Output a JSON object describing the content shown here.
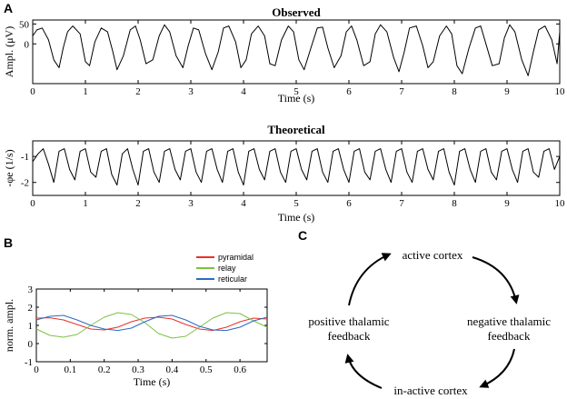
{
  "panel_letters": {
    "a": "A",
    "b": "B",
    "c": "C"
  },
  "chart_data": [
    {
      "type": "line",
      "panel": "A",
      "title": "Observed",
      "xlabel": "Time (s)",
      "ylabel": "Ampl. (μV)",
      "xlim": [
        0,
        10
      ],
      "ylim": [
        -100,
        60
      ],
      "xticks": [
        0,
        1,
        2,
        3,
        4,
        5,
        6,
        7,
        8,
        9,
        10
      ],
      "yticks": [
        0,
        50
      ],
      "grid": false,
      "series": [
        {
          "color": "#000000",
          "x": [
            0,
            0.08,
            0.18,
            0.3,
            0.4,
            0.5,
            0.58,
            0.66,
            0.76,
            0.9,
            1.0,
            1.08,
            1.18,
            1.3,
            1.42,
            1.52,
            1.6,
            1.72,
            1.85,
            1.95,
            2.04,
            2.15,
            2.28,
            2.4,
            2.5,
            2.6,
            2.72,
            2.85,
            2.95,
            3.05,
            3.15,
            3.28,
            3.4,
            3.52,
            3.62,
            3.72,
            3.85,
            3.95,
            4.05,
            4.15,
            4.28,
            4.4,
            4.5,
            4.6,
            4.72,
            4.85,
            4.95,
            5.05,
            5.15,
            5.28,
            5.4,
            5.5,
            5.6,
            5.72,
            5.85,
            5.95,
            6.05,
            6.15,
            6.28,
            6.4,
            6.5,
            6.6,
            6.72,
            6.85,
            6.95,
            7.05,
            7.15,
            7.28,
            7.4,
            7.5,
            7.6,
            7.72,
            7.85,
            7.95,
            8.05,
            8.15,
            8.28,
            8.4,
            8.5,
            8.6,
            8.72,
            8.85,
            8.95,
            9.05,
            9.15,
            9.28,
            9.4,
            9.5,
            9.6,
            9.72,
            9.85,
            9.95,
            10.0
          ],
          "y": [
            20,
            35,
            40,
            10,
            -40,
            -60,
            -10,
            30,
            45,
            25,
            -45,
            -55,
            5,
            40,
            30,
            -20,
            -65,
            -30,
            35,
            45,
            10,
            -50,
            -40,
            20,
            48,
            30,
            -30,
            -60,
            -5,
            40,
            35,
            -25,
            -65,
            -20,
            40,
            45,
            5,
            -60,
            -40,
            25,
            45,
            20,
            -50,
            -55,
            10,
            45,
            30,
            -40,
            -65,
            -10,
            40,
            42,
            -10,
            -60,
            -30,
            30,
            45,
            10,
            -55,
            -45,
            25,
            48,
            30,
            -35,
            -70,
            -20,
            40,
            45,
            -5,
            -60,
            -45,
            20,
            45,
            25,
            -55,
            -75,
            -10,
            40,
            45,
            0,
            -55,
            -50,
            15,
            48,
            30,
            -40,
            -80,
            -20,
            35,
            45,
            10,
            -50,
            30
          ]
        }
      ]
    },
    {
      "type": "line",
      "panel": "A",
      "title": "Theoretical",
      "xlabel": "Time (s)",
      "ylabel": "-φe (1/s)",
      "xlim": [
        0,
        10
      ],
      "ylim": [
        -2.5,
        -0.4
      ],
      "xticks": [
        0,
        1,
        2,
        3,
        4,
        5,
        6,
        7,
        8,
        9,
        10
      ],
      "yticks": [
        -2,
        -1
      ],
      "grid": false,
      "series": [
        {
          "color": "#000000",
          "x": [
            0,
            0.1,
            0.2,
            0.3,
            0.4,
            0.5,
            0.6,
            0.7,
            0.8,
            0.9,
            1.0,
            1.1,
            1.2,
            1.3,
            1.4,
            1.5,
            1.6,
            1.7,
            1.8,
            1.9,
            2.0,
            2.1,
            2.2,
            2.3,
            2.4,
            2.5,
            2.6,
            2.7,
            2.8,
            2.9,
            3.0,
            3.1,
            3.2,
            3.3,
            3.4,
            3.5,
            3.6,
            3.7,
            3.8,
            3.9,
            4.0,
            4.1,
            4.2,
            4.3,
            4.4,
            4.5,
            4.6,
            4.7,
            4.8,
            4.9,
            5.0,
            5.1,
            5.2,
            5.3,
            5.4,
            5.5,
            5.6,
            5.7,
            5.8,
            5.9,
            6.0,
            6.1,
            6.2,
            6.3,
            6.4,
            6.5,
            6.6,
            6.7,
            6.8,
            6.9,
            7.0,
            7.1,
            7.2,
            7.3,
            7.4,
            7.5,
            7.6,
            7.7,
            7.8,
            7.9,
            8.0,
            8.1,
            8.2,
            8.3,
            8.4,
            8.5,
            8.6,
            8.7,
            8.8,
            8.9,
            9.0,
            9.1,
            9.2,
            9.3,
            9.4,
            9.5,
            9.6,
            9.7,
            9.8,
            9.9,
            10.0
          ],
          "y": [
            -1.2,
            -0.9,
            -0.7,
            -1.3,
            -2.0,
            -0.8,
            -0.7,
            -1.5,
            -1.9,
            -0.8,
            -0.7,
            -1.6,
            -1.8,
            -0.8,
            -0.7,
            -1.7,
            -2.1,
            -0.9,
            -0.7,
            -1.5,
            -2.1,
            -0.8,
            -0.7,
            -1.6,
            -2.0,
            -0.8,
            -0.7,
            -1.5,
            -1.9,
            -0.8,
            -0.7,
            -1.6,
            -2.0,
            -0.8,
            -0.7,
            -1.5,
            -2.0,
            -0.8,
            -0.7,
            -1.6,
            -2.1,
            -0.8,
            -0.7,
            -1.5,
            -1.9,
            -0.8,
            -0.7,
            -1.6,
            -2.0,
            -0.8,
            -0.7,
            -1.5,
            -1.9,
            -0.8,
            -0.7,
            -1.6,
            -2.0,
            -0.8,
            -0.7,
            -1.5,
            -2.0,
            -0.8,
            -0.7,
            -1.6,
            -1.9,
            -0.8,
            -0.7,
            -1.5,
            -2.0,
            -0.8,
            -0.7,
            -1.6,
            -2.0,
            -0.8,
            -0.7,
            -1.5,
            -1.9,
            -0.8,
            -0.7,
            -1.6,
            -2.1,
            -0.8,
            -0.7,
            -1.5,
            -2.0,
            -0.8,
            -0.7,
            -1.6,
            -1.9,
            -0.8,
            -0.7,
            -1.5,
            -2.0,
            -0.8,
            -0.7,
            -1.6,
            -1.8,
            -0.8,
            -0.7,
            -1.5,
            -1.0
          ]
        }
      ]
    },
    {
      "type": "line",
      "panel": "B",
      "title": "",
      "xlabel": "Time (s)",
      "ylabel": "norm. ampl.",
      "xlim": [
        0,
        0.68
      ],
      "ylim": [
        -1,
        3
      ],
      "xticks": [
        0,
        0.1,
        0.2,
        0.3,
        0.4,
        0.5,
        0.6
      ],
      "yticks": [
        -1,
        0,
        1,
        2,
        3
      ],
      "grid": false,
      "legend": "top-left, above plot",
      "series": [
        {
          "name": "pyramidal",
          "color": "#e8312a",
          "x": [
            0,
            0.04,
            0.08,
            0.12,
            0.16,
            0.2,
            0.24,
            0.28,
            0.32,
            0.36,
            0.4,
            0.44,
            0.48,
            0.52,
            0.56,
            0.6,
            0.64,
            0.68
          ],
          "y": [
            1.4,
            1.42,
            1.3,
            1.05,
            0.8,
            0.75,
            0.9,
            1.2,
            1.4,
            1.45,
            1.35,
            1.05,
            0.8,
            0.72,
            0.9,
            1.2,
            1.4,
            1.35
          ]
        },
        {
          "name": "relay",
          "color": "#7cc242",
          "x": [
            0,
            0.04,
            0.08,
            0.12,
            0.16,
            0.2,
            0.24,
            0.28,
            0.32,
            0.36,
            0.4,
            0.44,
            0.48,
            0.52,
            0.56,
            0.6,
            0.64,
            0.68
          ],
          "y": [
            0.8,
            0.45,
            0.35,
            0.5,
            1.0,
            1.45,
            1.7,
            1.6,
            1.15,
            0.55,
            0.3,
            0.4,
            0.9,
            1.4,
            1.7,
            1.65,
            1.25,
            0.9
          ]
        },
        {
          "name": "reticular",
          "color": "#2a6bc4",
          "x": [
            0,
            0.04,
            0.08,
            0.12,
            0.16,
            0.2,
            0.24,
            0.28,
            0.32,
            0.36,
            0.4,
            0.44,
            0.48,
            0.52,
            0.56,
            0.6,
            0.64,
            0.68
          ],
          "y": [
            1.3,
            1.5,
            1.55,
            1.3,
            1.0,
            0.8,
            0.72,
            0.85,
            1.2,
            1.5,
            1.55,
            1.3,
            0.95,
            0.75,
            0.72,
            0.9,
            1.25,
            1.45
          ]
        }
      ]
    }
  ],
  "cycle": {
    "top": "active cortex",
    "right_line1": "negative thalamic",
    "right_line2": "feedback",
    "bottom": "in-active cortex",
    "left_line1": "positive thalamic",
    "left_line2": "feedback"
  }
}
